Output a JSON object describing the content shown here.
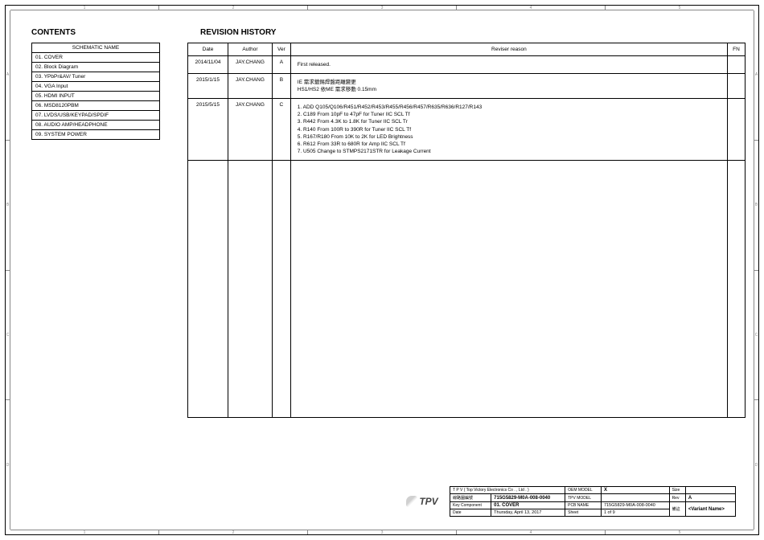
{
  "ruler_top": [
    "1",
    "2",
    "3",
    "4",
    "5"
  ],
  "ruler_side": [
    "A",
    "B",
    "C",
    "D"
  ],
  "contents": {
    "title": "CONTENTS",
    "header": "SCHEMATIC NAME",
    "items": [
      "01. COVER",
      "02. Block Diagram",
      "03. YPbPr&AV/ Tuner",
      "04. VGA Input",
      "05. HDMI INPUT",
      "06. MSD8120PBM",
      "07. LVDS/USB/KEYPAD/SPDIF",
      "08. AUDIO AMP/HEADPHONE",
      "09. SYSTEM POWER"
    ]
  },
  "revision": {
    "title": "REVISION HISTORY",
    "headers": {
      "date": "Date",
      "author": "Author",
      "ver": "Ver",
      "reason": "Reviser reason",
      "fn": "FN"
    },
    "rows": [
      {
        "date": "2014/11/04",
        "author": "JAY.CHANG",
        "ver": "A",
        "reason_lines": [
          "First released."
        ],
        "fn": ""
      },
      {
        "date": "2015/1/15",
        "author": "JAY.CHANG",
        "ver": "B",
        "reason_lines": [
          "IE 需求鍍錫焊盤距離變更",
          "HS1/HS2 依ME 需求移動 0.15mm"
        ],
        "fn": ""
      },
      {
        "date": "2015/5/15",
        "author": "JAY.CHANG",
        "ver": "C",
        "reason_lines": [
          "1. ADD Q105/Q106/R451/R452/R453/R455/R456/R457/R635/R636/R127/R143",
          "2. C189 From 10pF to 47pF for Tuner IIC SCL Tf",
          "3. R442   From 4.3K to 1.8K for Tuner  IIC SCL Tr",
          "4. R140   From 100R to 390R for Tuner IIC SCL Tf",
          "5. R167/R180 From 10K to 2K for LED Brightness",
          "6. R612   From 33R to 680R for Amp IIC SCL Tf",
          "7. U505 Change to STMPS2171STR   for Leakage Current"
        ],
        "fn": ""
      }
    ]
  },
  "title_block": {
    "company": "T P V   ( Top   Victory   Electronics   Co . ,  Ltd . )",
    "part_label": "線路圖編號",
    "part_no": "715G5829-M0A-008-0040",
    "key_comp_label": "Key Component",
    "key_comp": "01. COVER",
    "date_label": "Date",
    "date": "Thursday, April 13, 2017",
    "oem_label": "OEM MODEL",
    "oem": "X",
    "tpv_label": "TPV MODEL",
    "tpv_model": "",
    "pcb_label": "PCB NAME",
    "pcb": "715G5829-M0A-008-0040",
    "sheet_label": "Sheet",
    "sheet": "1   of   9",
    "size_label": "Size",
    "size": "",
    "rev_label": "Rev",
    "rev": "A",
    "note_label": "備註",
    "variant": "<Variant Name>"
  }
}
